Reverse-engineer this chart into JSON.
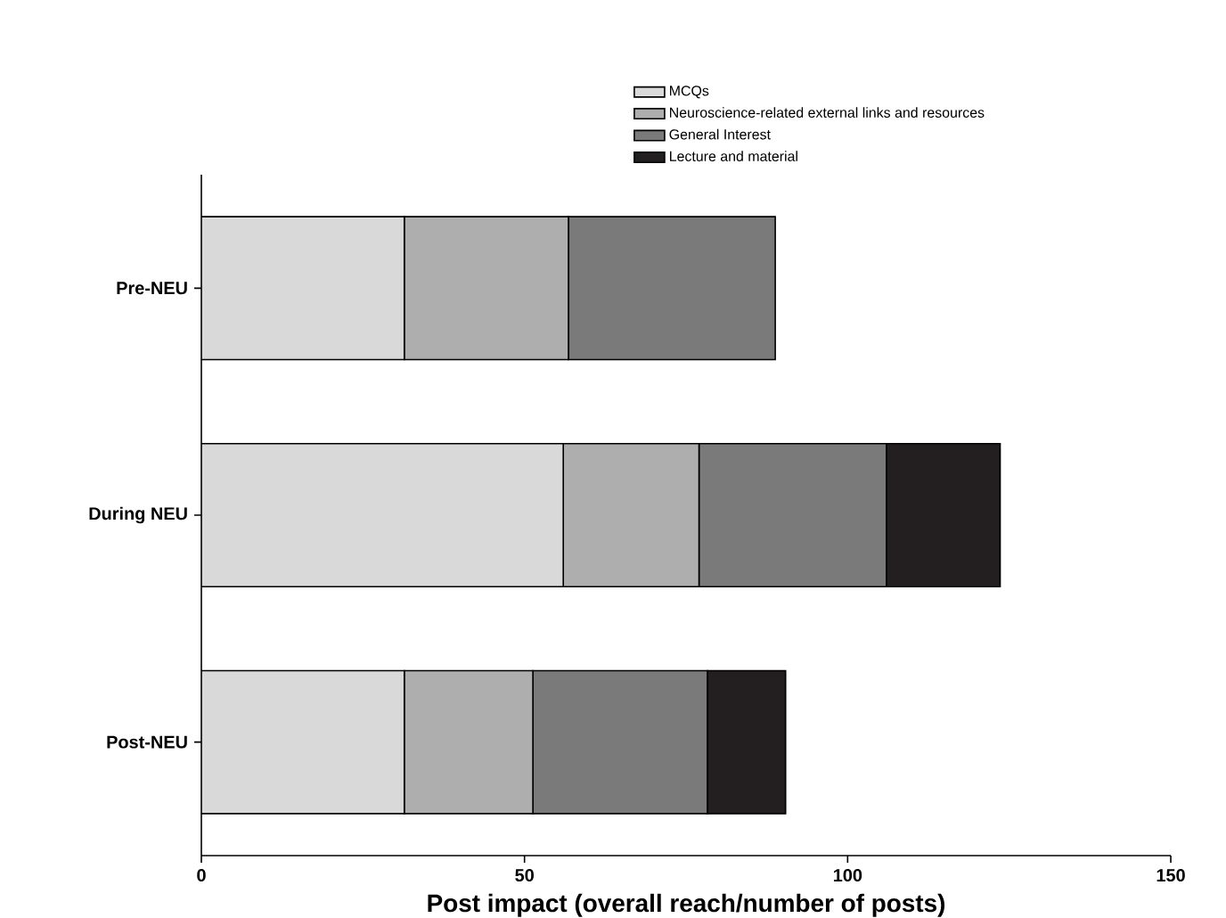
{
  "chart_data": {
    "type": "bar",
    "orientation": "horizontal",
    "stacked": true,
    "categories": [
      "Pre-NEU",
      "During NEU",
      "Post-NEU"
    ],
    "series": [
      {
        "name": "MCQs",
        "color": "#d9d9d9",
        "values": [
          31.4,
          56,
          31.4
        ]
      },
      {
        "name": "Neuroscience-related external links and resources",
        "color": "#aeaeae",
        "values": [
          25.4,
          21,
          19.9
        ]
      },
      {
        "name": "General Interest",
        "color": "#7a7a7a",
        "values": [
          32,
          29,
          27
        ]
      },
      {
        "name": "Lecture and material",
        "color": "#231f20",
        "values": [
          null,
          17.6,
          12.1
        ]
      }
    ],
    "xlabel": "Post impact (overall reach/number of posts)",
    "xlim": [
      0,
      150
    ],
    "xticks": [
      0,
      50,
      100,
      150
    ],
    "legend": "top"
  }
}
